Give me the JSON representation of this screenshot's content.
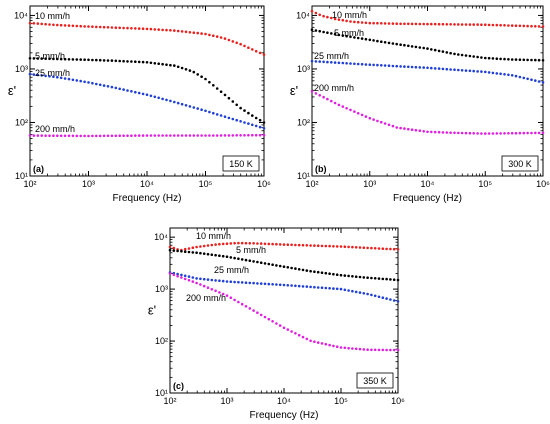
{
  "chart_data": [
    {
      "type": "scatter",
      "panel_label": "(a)",
      "temperature_label": "150 K",
      "xlabel": "Frequency (Hz)",
      "ylabel": "ε'",
      "xscale": "log",
      "yscale": "log",
      "xlim": [
        100,
        1000000
      ],
      "ylim": [
        10,
        15000
      ],
      "x_ticks": [
        "10²",
        "10³",
        "10⁴",
        "10⁵",
        "10⁶"
      ],
      "y_ticks": [
        "10¹",
        "10²",
        "10³",
        "10⁴"
      ],
      "series": [
        {
          "name": "10 mm/h",
          "color": "#e8201e",
          "x": [
            100,
            300,
            1000,
            3000,
            10000,
            30000,
            100000,
            200000,
            400000,
            700000,
            1000000
          ],
          "y": [
            7200,
            6600,
            6200,
            5900,
            5600,
            5200,
            4500,
            3800,
            2900,
            2200,
            1850
          ]
        },
        {
          "name": "5 mm/h",
          "color": "#000000",
          "x": [
            100,
            300,
            1000,
            3000,
            10000,
            30000,
            60000,
            100000,
            200000,
            400000,
            700000,
            1000000
          ],
          "y": [
            1580,
            1530,
            1480,
            1420,
            1330,
            1150,
            900,
            650,
            350,
            185,
            125,
            100
          ]
        },
        {
          "name": "25 mm/h",
          "color": "#1f3fd6",
          "x": [
            100,
            300,
            1000,
            3000,
            10000,
            30000,
            100000,
            300000,
            1000000
          ],
          "y": [
            800,
            700,
            560,
            440,
            330,
            240,
            165,
            115,
            78
          ]
        },
        {
          "name": "200 mm/h",
          "color": "#e020e0",
          "x": [
            100,
            1000,
            10000,
            100000,
            1000000
          ],
          "y": [
            57,
            56,
            57,
            57,
            58
          ]
        }
      ]
    },
    {
      "type": "scatter",
      "panel_label": "(b)",
      "temperature_label": "300 K",
      "xlabel": "Frequency (Hz)",
      "ylabel": "ε'",
      "xscale": "log",
      "yscale": "log",
      "xlim": [
        100,
        1000000
      ],
      "ylim": [
        10,
        15000
      ],
      "x_ticks": [
        "10²",
        "10³",
        "10⁴",
        "10⁵",
        "10⁶"
      ],
      "y_ticks": [
        "10¹",
        "10²",
        "10³",
        "10⁴"
      ],
      "series": [
        {
          "name": "10 mm/h",
          "color": "#e8201e",
          "x": [
            100,
            150,
            250,
            500,
            1000,
            3000,
            10000,
            100000,
            1000000
          ],
          "y": [
            12000,
            9800,
            8600,
            7600,
            7200,
            7000,
            6900,
            6700,
            6200
          ]
        },
        {
          "name": "5 mm/h",
          "color": "#000000",
          "x": [
            100,
            300,
            1000,
            3000,
            10000,
            30000,
            100000,
            300000,
            1000000
          ],
          "y": [
            5400,
            4300,
            3500,
            2900,
            2400,
            1900,
            1600,
            1500,
            1450
          ]
        },
        {
          "name": "25 mm/h",
          "color": "#1f3fd6",
          "x": [
            100,
            1000,
            10000,
            100000,
            300000,
            1000000
          ],
          "y": [
            1400,
            1200,
            1050,
            880,
            760,
            560
          ]
        },
        {
          "name": "200 mm/h",
          "color": "#e020e0",
          "x": [
            100,
            300,
            1000,
            3000,
            10000,
            30000,
            100000,
            1000000
          ],
          "y": [
            380,
            210,
            120,
            80,
            67,
            64,
            62,
            64
          ]
        }
      ]
    },
    {
      "type": "scatter",
      "panel_label": "(c)",
      "temperature_label": "350 K",
      "xlabel": "Frequency (Hz)",
      "ylabel": "ε'",
      "xscale": "log",
      "yscale": "log",
      "xlim": [
        100,
        1000000
      ],
      "ylim": [
        10,
        15000
      ],
      "x_ticks": [
        "10²",
        "10³",
        "10⁴",
        "10⁵",
        "10⁶"
      ],
      "y_ticks": [
        "10¹",
        "10²",
        "10³",
        "10⁴"
      ],
      "series": [
        {
          "name": "10 mm/h",
          "color": "#e8201e",
          "x": [
            100,
            150,
            300,
            700,
            1500,
            3000,
            10000,
            100000,
            1000000
          ],
          "y": [
            6500,
            5600,
            6500,
            7300,
            7700,
            7600,
            7200,
            6600,
            5800
          ]
        },
        {
          "name": "5 mm/h",
          "color": "#000000",
          "x": [
            100,
            300,
            1000,
            3000,
            10000,
            30000,
            100000,
            300000,
            1000000
          ],
          "y": [
            5600,
            5000,
            4200,
            3400,
            2700,
            2200,
            1850,
            1650,
            1500
          ]
        },
        {
          "name": "25 mm/h",
          "color": "#1f3fd6",
          "x": [
            100,
            300,
            1000,
            3000,
            10000,
            100000,
            300000,
            1000000
          ],
          "y": [
            2100,
            1600,
            1400,
            1300,
            1200,
            1000,
            800,
            580
          ]
        },
        {
          "name": "200 mm/h",
          "color": "#e020e0",
          "x": [
            100,
            300,
            1000,
            3000,
            10000,
            30000,
            100000,
            300000,
            1000000
          ],
          "y": [
            2000,
            1300,
            750,
            380,
            180,
            100,
            75,
            68,
            67
          ]
        }
      ]
    }
  ]
}
